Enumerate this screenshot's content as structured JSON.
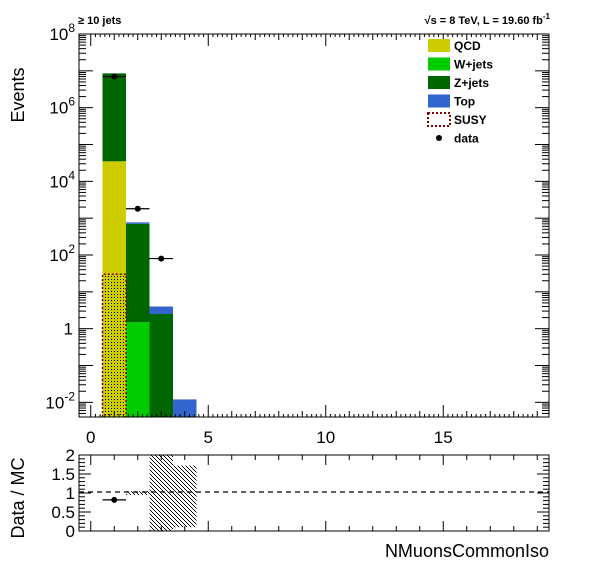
{
  "header": {
    "left_prefix": "≥",
    "left_text": "10 jets",
    "right_sqrt": "√",
    "right_text": "s = 8 TeV, L = 19.60 fb",
    "right_sup": "-1"
  },
  "colors": {
    "QCD": "#cccc00",
    "Wjets": "#00cc00",
    "Zjets": "#006600",
    "Top": "#3366cc",
    "SUSY": "#800000",
    "data": "#000000"
  },
  "chart_data": [
    {
      "type": "bar",
      "stacked": true,
      "log_y": true,
      "xlabel": "NMuonsCommonIso",
      "ylabel": "Events",
      "xlim": [
        -0.5,
        19.5
      ],
      "ylim": [
        0.004,
        100000000
      ],
      "x_ticks": [
        "0",
        "5",
        "10",
        "15"
      ],
      "y_ticks": [
        "10-2",
        "1",
        "102",
        "104",
        "106",
        "108"
      ],
      "bins": [
        1,
        2,
        3,
        4,
        5
      ],
      "series": [
        {
          "name": "QCD",
          "values": [
            35000,
            0,
            0,
            0,
            0
          ]
        },
        {
          "name": "W+jets",
          "values": [
            0,
            1.5,
            0,
            0,
            0
          ]
        },
        {
          "name": "Z+jets",
          "values": [
            8500000,
            700,
            2.5,
            0,
            0
          ]
        },
        {
          "name": "Top",
          "values": [
            0,
            70,
            1.5,
            0.012,
            0
          ]
        },
        {
          "name": "SUSY",
          "values": [
            30,
            0,
            0,
            0,
            0
          ]
        }
      ],
      "data": {
        "name": "data",
        "x": [
          1,
          2,
          3
        ],
        "y": [
          7000000,
          1800,
          80
        ]
      },
      "legend_placement": "top-right",
      "legend": [
        "QCD",
        "W+jets",
        "Z+jets",
        "Top",
        "SUSY",
        "data"
      ]
    },
    {
      "type": "scatter",
      "ylabel": "Data / MC",
      "xlabel": "NMuonsCommonIso",
      "ylim": [
        0,
        2
      ],
      "y_ticks": [
        "0",
        "0.5",
        "1",
        "1.5",
        "2"
      ],
      "reference_line": 1,
      "points": [
        {
          "x": 1,
          "y": 0.82
        }
      ],
      "uncertainty_band": [
        {
          "bin": 2,
          "low": 0.95,
          "high": 1.05
        },
        {
          "bin": 3,
          "low": 0.0,
          "high": 2.0
        },
        {
          "bin": 4,
          "low": 0.1,
          "high": 1.72
        }
      ]
    }
  ]
}
